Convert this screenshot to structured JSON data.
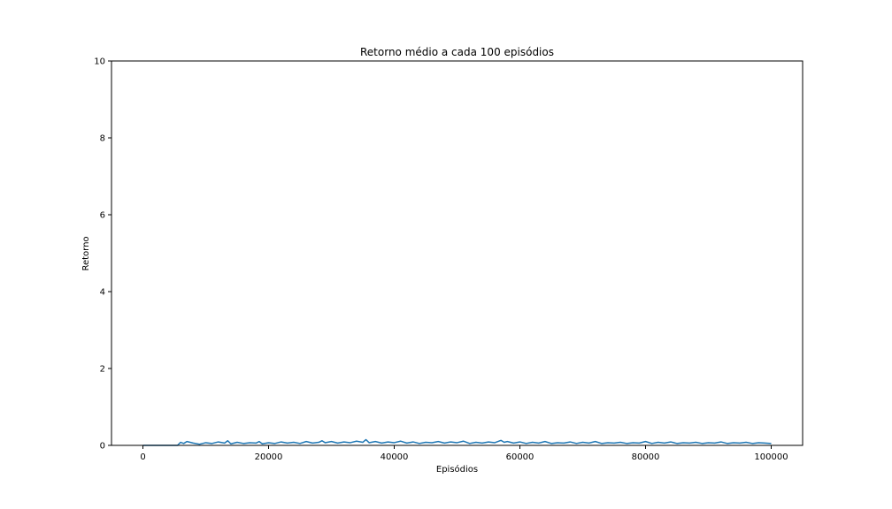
{
  "chart_data": {
    "type": "line",
    "title": "Retorno médio a cada 100 episódios",
    "xlabel": "Episódios",
    "ylabel": "Retorno",
    "xlim": [
      -5000,
      105000
    ],
    "ylim": [
      0,
      10
    ],
    "xticks": [
      0,
      20000,
      40000,
      60000,
      80000,
      100000
    ],
    "xtick_labels": [
      "0",
      "20000",
      "40000",
      "60000",
      "80000",
      "100000"
    ],
    "yticks": [
      0,
      2,
      4,
      6,
      8,
      10
    ],
    "ytick_labels": [
      "0",
      "2",
      "4",
      "6",
      "8",
      "10"
    ],
    "grid": false,
    "series": [
      {
        "color": "#1f77b4",
        "x": [
          0,
          5500,
          6000,
          6500,
          7000,
          8000,
          9000,
          10000,
          11000,
          12000,
          13000,
          13500,
          14000,
          15000,
          16000,
          17000,
          18000,
          18500,
          19000,
          20000,
          21000,
          22000,
          23000,
          24000,
          25000,
          26000,
          27000,
          28000,
          28500,
          29000,
          30000,
          31000,
          32000,
          33000,
          34000,
          35000,
          35500,
          36000,
          37000,
          38000,
          39000,
          40000,
          41000,
          42000,
          43000,
          44000,
          45000,
          46000,
          47000,
          48000,
          49000,
          50000,
          51000,
          52000,
          53000,
          54000,
          55000,
          56000,
          57000,
          57500,
          58000,
          59000,
          60000,
          61000,
          62000,
          63000,
          64000,
          65000,
          66000,
          67000,
          68000,
          69000,
          70000,
          71000,
          72000,
          73000,
          74000,
          75000,
          76000,
          77000,
          78000,
          79000,
          80000,
          81000,
          82000,
          83000,
          84000,
          85000,
          86000,
          87000,
          88000,
          89000,
          90000,
          91000,
          92000,
          93000,
          94000,
          95000,
          96000,
          97000,
          98000,
          99000,
          100000
        ],
        "y": [
          0.0,
          0.0,
          0.08,
          0.05,
          0.1,
          0.06,
          0.03,
          0.07,
          0.05,
          0.09,
          0.06,
          0.12,
          0.04,
          0.08,
          0.05,
          0.07,
          0.06,
          0.1,
          0.04,
          0.07,
          0.05,
          0.09,
          0.06,
          0.08,
          0.05,
          0.1,
          0.06,
          0.08,
          0.12,
          0.07,
          0.1,
          0.06,
          0.09,
          0.07,
          0.11,
          0.08,
          0.15,
          0.07,
          0.1,
          0.06,
          0.09,
          0.07,
          0.11,
          0.06,
          0.09,
          0.05,
          0.08,
          0.07,
          0.1,
          0.06,
          0.09,
          0.07,
          0.11,
          0.05,
          0.08,
          0.06,
          0.09,
          0.07,
          0.13,
          0.08,
          0.1,
          0.06,
          0.09,
          0.05,
          0.08,
          0.06,
          0.1,
          0.05,
          0.07,
          0.06,
          0.09,
          0.05,
          0.08,
          0.06,
          0.1,
          0.05,
          0.07,
          0.06,
          0.08,
          0.05,
          0.07,
          0.06,
          0.1,
          0.05,
          0.08,
          0.06,
          0.09,
          0.05,
          0.07,
          0.06,
          0.08,
          0.05,
          0.07,
          0.06,
          0.09,
          0.05,
          0.07,
          0.06,
          0.08,
          0.05,
          0.07,
          0.06,
          0.05
        ]
      }
    ]
  }
}
